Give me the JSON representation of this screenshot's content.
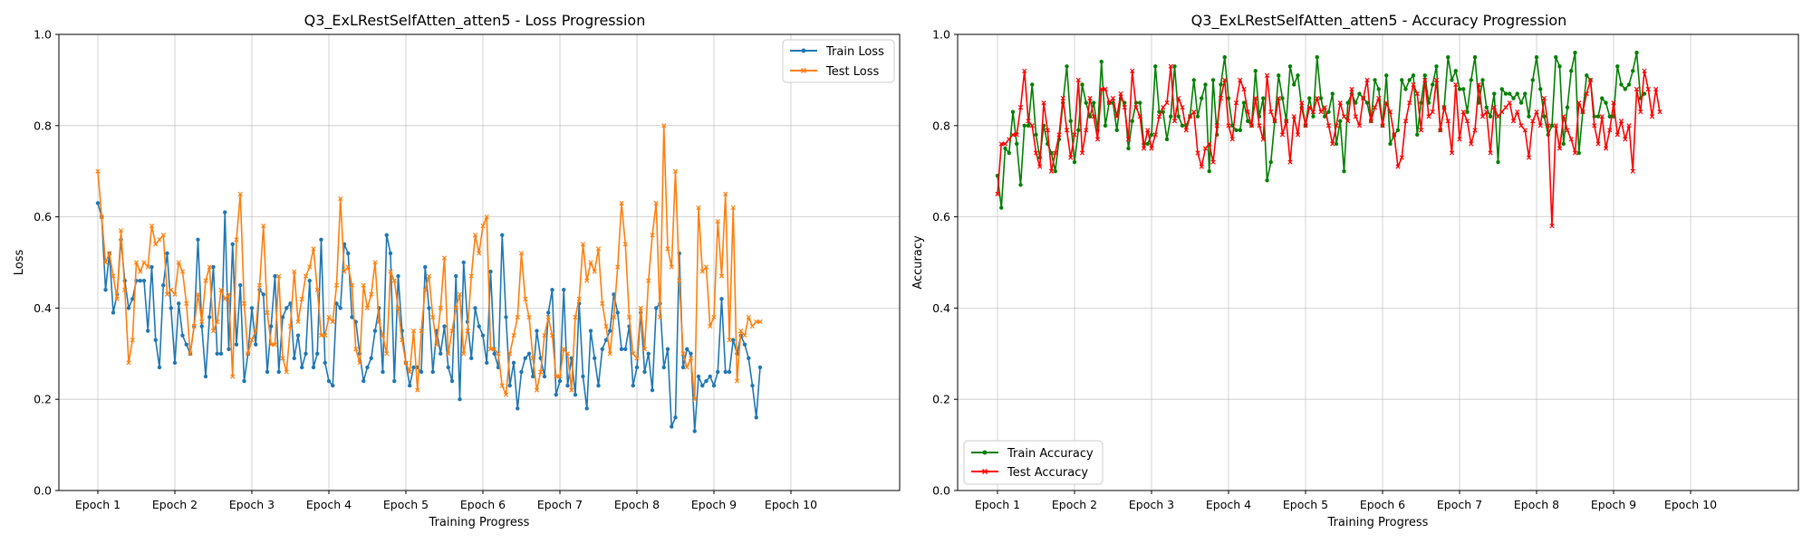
{
  "chart_data": [
    {
      "type": "line",
      "title": "Q3_ExLRestSelfAtten_atten5 - Loss Progression",
      "xlabel": "Training Progress",
      "ylabel": "Loss",
      "ylim": [
        0,
        1.0
      ],
      "yticks": [
        "0.0",
        "0.2",
        "0.4",
        "0.6",
        "0.8",
        "1.0"
      ],
      "xticks": [
        "Epoch 1",
        "Epoch 2",
        "Epoch 3",
        "Epoch 4",
        "Epoch 5",
        "Epoch 6",
        "Epoch 7",
        "Epoch 8",
        "Epoch 9",
        "Epoch 10"
      ],
      "points_per_epoch": 20,
      "grid": true,
      "legend_position": "upper right",
      "series": [
        {
          "name": "Train Loss",
          "color": "#1f77b4",
          "marker": "circle",
          "values": [
            0.63,
            0.6,
            0.44,
            0.52,
            0.39,
            0.43,
            0.55,
            0.46,
            0.4,
            0.42,
            0.46,
            0.46,
            0.46,
            0.35,
            0.49,
            0.33,
            0.27,
            0.45,
            0.52,
            0.4,
            0.28,
            0.41,
            0.34,
            0.32,
            0.3,
            0.36,
            0.55,
            0.36,
            0.25,
            0.38,
            0.49,
            0.3,
            0.3,
            0.61,
            0.31,
            0.54,
            0.32,
            0.45,
            0.24,
            0.3,
            0.4,
            0.32,
            0.44,
            0.43,
            0.26,
            0.36,
            0.47,
            0.26,
            0.38,
            0.4,
            0.41,
            0.29,
            0.34,
            0.27,
            0.3,
            0.46,
            0.27,
            0.3,
            0.55,
            0.28,
            0.24,
            0.23,
            0.41,
            0.4,
            0.54,
            0.52,
            0.38,
            0.37,
            0.3,
            0.24,
            0.27,
            0.29,
            0.35,
            0.4,
            0.26,
            0.56,
            0.52,
            0.24,
            0.47,
            0.35,
            0.28,
            0.23,
            0.27,
            0.27,
            0.26,
            0.49,
            0.4,
            0.26,
            0.35,
            0.3,
            0.36,
            0.27,
            0.24,
            0.47,
            0.2,
            0.5,
            0.37,
            0.29,
            0.4,
            0.36,
            0.34,
            0.28,
            0.48,
            0.3,
            0.27,
            0.56,
            0.38,
            0.23,
            0.28,
            0.18,
            0.26,
            0.29,
            0.3,
            0.25,
            0.35,
            0.29,
            0.25,
            0.39,
            0.44,
            0.21,
            0.24,
            0.44,
            0.23,
            0.29,
            0.21,
            0.41,
            0.25,
            0.18,
            0.35,
            0.29,
            0.23,
            0.31,
            0.33,
            0.35,
            0.43,
            0.39,
            0.31,
            0.31,
            0.36,
            0.23,
            0.27,
            0.39,
            0.26,
            0.3,
            0.22,
            0.4,
            0.41,
            0.27,
            0.31,
            0.14,
            0.16,
            0.52,
            0.27,
            0.31,
            0.3,
            0.13,
            0.25,
            0.23,
            0.24,
            0.25,
            0.23,
            0.26,
            0.42,
            0.26,
            0.26,
            0.33,
            0.3,
            0.34,
            0.32,
            0.29,
            0.23,
            0.16,
            0.27
          ]
        },
        {
          "name": "Test Loss",
          "color": "#ff7f0e",
          "marker": "x",
          "values": [
            0.7,
            0.6,
            0.5,
            0.52,
            0.47,
            0.42,
            0.57,
            0.44,
            0.28,
            0.33,
            0.5,
            0.48,
            0.5,
            0.49,
            0.58,
            0.54,
            0.55,
            0.56,
            0.43,
            0.44,
            0.43,
            0.5,
            0.48,
            0.41,
            0.3,
            0.36,
            0.43,
            0.37,
            0.46,
            0.49,
            0.35,
            0.37,
            0.44,
            0.42,
            0.43,
            0.25,
            0.55,
            0.65,
            0.41,
            0.3,
            0.33,
            0.35,
            0.45,
            0.58,
            0.39,
            0.32,
            0.32,
            0.47,
            0.29,
            0.26,
            0.36,
            0.48,
            0.37,
            0.42,
            0.47,
            0.49,
            0.53,
            0.44,
            0.34,
            0.34,
            0.38,
            0.37,
            0.45,
            0.64,
            0.48,
            0.49,
            0.45,
            0.31,
            0.28,
            0.45,
            0.4,
            0.43,
            0.5,
            0.37,
            0.34,
            0.3,
            0.48,
            0.46,
            0.4,
            0.33,
            0.28,
            0.26,
            0.35,
            0.22,
            0.35,
            0.44,
            0.47,
            0.38,
            0.32,
            0.4,
            0.51,
            0.3,
            0.35,
            0.4,
            0.43,
            0.3,
            0.35,
            0.47,
            0.56,
            0.52,
            0.58,
            0.6,
            0.31,
            0.31,
            0.3,
            0.23,
            0.21,
            0.3,
            0.34,
            0.38,
            0.52,
            0.42,
            0.38,
            0.29,
            0.22,
            0.26,
            0.34,
            0.38,
            0.34,
            0.25,
            0.25,
            0.31,
            0.3,
            0.22,
            0.38,
            0.42,
            0.54,
            0.46,
            0.5,
            0.48,
            0.53,
            0.41,
            0.36,
            0.3,
            0.38,
            0.49,
            0.63,
            0.54,
            0.38,
            0.3,
            0.29,
            0.4,
            0.31,
            0.46,
            0.56,
            0.63,
            0.38,
            0.8,
            0.53,
            0.49,
            0.7,
            0.46,
            0.3,
            0.27,
            0.29,
            0.2,
            0.62,
            0.48,
            0.49,
            0.36,
            0.38,
            0.59,
            0.47,
            0.65,
            0.33,
            0.62,
            0.24,
            0.35,
            0.34,
            0.38,
            0.36,
            0.37,
            0.37
          ]
        }
      ]
    },
    {
      "type": "line",
      "title": "Q3_ExLRestSelfAtten_atten5 - Accuracy Progression",
      "xlabel": "Training Progress",
      "ylabel": "Accuracy",
      "ylim": [
        0,
        1.0
      ],
      "yticks": [
        "0.0",
        "0.2",
        "0.4",
        "0.6",
        "0.8",
        "1.0"
      ],
      "xticks": [
        "Epoch 1",
        "Epoch 2",
        "Epoch 3",
        "Epoch 4",
        "Epoch 5",
        "Epoch 6",
        "Epoch 7",
        "Epoch 8",
        "Epoch 9",
        "Epoch 10"
      ],
      "points_per_epoch": 20,
      "grid": true,
      "legend_position": "lower left",
      "series": [
        {
          "name": "Train Accuracy",
          "color": "#008000",
          "marker": "circle",
          "values": [
            0.69,
            0.62,
            0.75,
            0.74,
            0.83,
            0.76,
            0.67,
            0.8,
            0.8,
            0.89,
            0.78,
            0.73,
            0.8,
            0.76,
            0.74,
            0.7,
            0.77,
            0.85,
            0.93,
            0.81,
            0.72,
            0.79,
            0.89,
            0.85,
            0.82,
            0.85,
            0.79,
            0.94,
            0.8,
            0.85,
            0.85,
            0.79,
            0.86,
            0.85,
            0.75,
            0.81,
            0.85,
            0.85,
            0.76,
            0.76,
            0.78,
            0.93,
            0.83,
            0.83,
            0.77,
            0.82,
            0.93,
            0.82,
            0.8,
            0.8,
            0.82,
            0.9,
            0.82,
            0.86,
            0.89,
            0.7,
            0.9,
            0.78,
            0.89,
            0.95,
            0.86,
            0.8,
            0.79,
            0.79,
            0.85,
            0.81,
            0.8,
            0.92,
            0.82,
            0.86,
            0.68,
            0.72,
            0.81,
            0.91,
            0.86,
            0.81,
            0.93,
            0.89,
            0.91,
            0.84,
            0.8,
            0.86,
            0.82,
            0.95,
            0.86,
            0.82,
            0.83,
            0.87,
            0.76,
            0.81,
            0.7,
            0.85,
            0.87,
            0.85,
            0.87,
            0.86,
            0.85,
            0.81,
            0.9,
            0.88,
            0.8,
            0.91,
            0.76,
            0.78,
            0.79,
            0.9,
            0.88,
            0.9,
            0.91,
            0.78,
            0.85,
            0.91,
            0.85,
            0.89,
            0.93,
            0.79,
            0.84,
            0.95,
            0.9,
            0.92,
            0.88,
            0.88,
            0.83,
            0.9,
            0.95,
            0.85,
            0.9,
            0.84,
            0.82,
            0.87,
            0.72,
            0.88,
            0.87,
            0.87,
            0.86,
            0.87,
            0.85,
            0.87,
            0.82,
            0.9,
            0.95,
            0.88,
            0.82,
            0.78,
            0.8,
            0.95,
            0.93,
            0.76,
            0.84,
            0.92,
            0.96,
            0.74,
            0.83,
            0.91,
            0.9,
            0.82,
            0.82,
            0.86,
            0.85,
            0.82,
            0.82,
            0.93,
            0.89,
            0.88,
            0.89,
            0.92,
            0.96,
            0.86,
            0.87
          ]
        },
        {
          "name": "Test Accuracy",
          "color": "#ff0000",
          "marker": "x",
          "values": [
            0.65,
            0.76,
            0.76,
            0.77,
            0.78,
            0.78,
            0.84,
            0.92,
            0.81,
            0.8,
            0.74,
            0.71,
            0.85,
            0.79,
            0.7,
            0.74,
            0.78,
            0.86,
            0.79,
            0.73,
            0.78,
            0.9,
            0.74,
            0.79,
            0.86,
            0.82,
            0.77,
            0.88,
            0.88,
            0.85,
            0.86,
            0.82,
            0.87,
            0.84,
            0.77,
            0.92,
            0.84,
            0.82,
            0.75,
            0.79,
            0.75,
            0.78,
            0.82,
            0.84,
            0.85,
            0.93,
            0.81,
            0.86,
            0.84,
            0.79,
            0.82,
            0.83,
            0.74,
            0.71,
            0.75,
            0.76,
            0.72,
            0.8,
            0.86,
            0.9,
            0.8,
            0.77,
            0.85,
            0.9,
            0.88,
            0.83,
            0.8,
            0.86,
            0.8,
            0.77,
            0.91,
            0.83,
            0.81,
            0.86,
            0.78,
            0.81,
            0.72,
            0.82,
            0.78,
            0.85,
            0.8,
            0.84,
            0.83,
            0.86,
            0.83,
            0.84,
            0.8,
            0.76,
            0.8,
            0.85,
            0.82,
            0.81,
            0.88,
            0.82,
            0.8,
            0.86,
            0.9,
            0.81,
            0.84,
            0.86,
            0.8,
            0.85,
            0.83,
            0.78,
            0.71,
            0.73,
            0.81,
            0.85,
            0.89,
            0.87,
            0.79,
            0.9,
            0.82,
            0.83,
            0.9,
            0.79,
            0.84,
            0.81,
            0.74,
            0.89,
            0.77,
            0.83,
            0.81,
            0.76,
            0.79,
            0.89,
            0.82,
            0.83,
            0.74,
            0.84,
            0.82,
            0.83,
            0.84,
            0.85,
            0.81,
            0.83,
            0.8,
            0.79,
            0.73,
            0.81,
            0.83,
            0.8,
            0.86,
            0.8,
            0.58,
            0.8,
            0.75,
            0.82,
            0.79,
            0.77,
            0.74,
            0.85,
            0.83,
            0.87,
            0.9,
            0.8,
            0.76,
            0.82,
            0.75,
            0.79,
            0.85,
            0.78,
            0.81,
            0.77,
            0.8,
            0.7,
            0.88,
            0.83,
            0.92,
            0.88,
            0.82,
            0.88,
            0.83
          ]
        }
      ]
    }
  ]
}
